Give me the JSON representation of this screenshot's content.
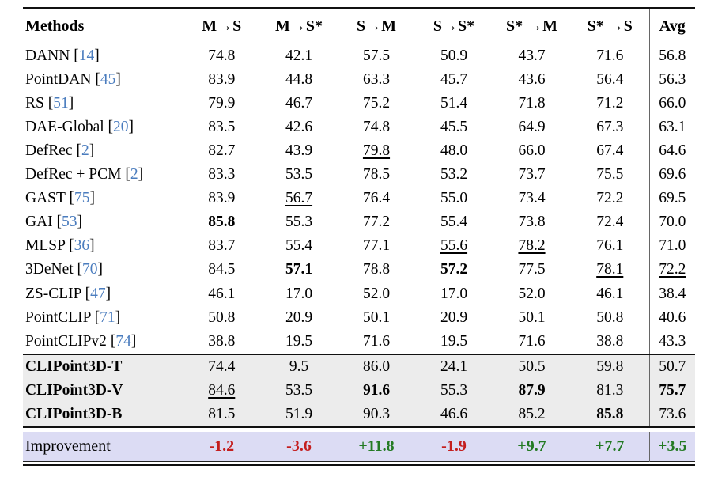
{
  "colors": {
    "cite_blue": "#4a7cbe",
    "section_bg": "#ececec",
    "improve_bg": "#dcdcf4",
    "neg_red": "#c41e1e",
    "pos_green": "#237a23",
    "rule_dark": "#111111"
  },
  "table": {
    "columns": [
      "Methods",
      "M→S",
      "M→S*",
      "S→M",
      "S→S*",
      "S* →M",
      "S* →S",
      "Avg"
    ],
    "sections": [
      {
        "id": "uda-methods",
        "rows": [
          {
            "method": "DANN",
            "cite": "14",
            "values": [
              {
                "v": "74.8"
              },
              {
                "v": "42.1"
              },
              {
                "v": "57.5"
              },
              {
                "v": "50.9"
              },
              {
                "v": "43.7"
              },
              {
                "v": "71.6"
              },
              {
                "v": "56.8"
              }
            ]
          },
          {
            "method": "PointDAN",
            "cite": "45",
            "values": [
              {
                "v": "83.9"
              },
              {
                "v": "44.8"
              },
              {
                "v": "63.3"
              },
              {
                "v": "45.7"
              },
              {
                "v": "43.6"
              },
              {
                "v": "56.4"
              },
              {
                "v": "56.3"
              }
            ]
          },
          {
            "method": "RS",
            "cite": "51",
            "values": [
              {
                "v": "79.9"
              },
              {
                "v": "46.7"
              },
              {
                "v": "75.2"
              },
              {
                "v": "51.4"
              },
              {
                "v": "71.8"
              },
              {
                "v": "71.2"
              },
              {
                "v": "66.0"
              }
            ]
          },
          {
            "method": "DAE-Global",
            "cite": "20",
            "values": [
              {
                "v": "83.5"
              },
              {
                "v": "42.6"
              },
              {
                "v": "74.8"
              },
              {
                "v": "45.5"
              },
              {
                "v": "64.9"
              },
              {
                "v": "67.3"
              },
              {
                "v": "63.1"
              }
            ]
          },
          {
            "method": "DefRec",
            "cite": "2",
            "values": [
              {
                "v": "82.7"
              },
              {
                "v": "43.9"
              },
              {
                "v": "79.8",
                "s": "u"
              },
              {
                "v": "48.0"
              },
              {
                "v": "66.0"
              },
              {
                "v": "67.4"
              },
              {
                "v": "64.6"
              }
            ]
          },
          {
            "method": "DefRec + PCM",
            "cite": "2",
            "values": [
              {
                "v": "83.3"
              },
              {
                "v": "53.5"
              },
              {
                "v": "78.5"
              },
              {
                "v": "53.2"
              },
              {
                "v": "73.7"
              },
              {
                "v": "75.5"
              },
              {
                "v": "69.6"
              }
            ]
          },
          {
            "method": "GAST",
            "cite": "75",
            "values": [
              {
                "v": "83.9"
              },
              {
                "v": "56.7",
                "s": "u"
              },
              {
                "v": "76.4"
              },
              {
                "v": "55.0"
              },
              {
                "v": "73.4"
              },
              {
                "v": "72.2"
              },
              {
                "v": "69.5"
              }
            ]
          },
          {
            "method": "GAI",
            "cite": "53",
            "values": [
              {
                "v": "85.8",
                "s": "b"
              },
              {
                "v": "55.3"
              },
              {
                "v": "77.2"
              },
              {
                "v": "55.4"
              },
              {
                "v": "73.8"
              },
              {
                "v": "72.4"
              },
              {
                "v": "70.0"
              }
            ]
          },
          {
            "method": "MLSP",
            "cite": "36",
            "values": [
              {
                "v": "83.7"
              },
              {
                "v": "55.4"
              },
              {
                "v": "77.1"
              },
              {
                "v": "55.6",
                "s": "u"
              },
              {
                "v": "78.2",
                "s": "u"
              },
              {
                "v": "76.1"
              },
              {
                "v": "71.0"
              }
            ]
          },
          {
            "method": "3DeNet",
            "cite": "70",
            "values": [
              {
                "v": "84.5"
              },
              {
                "v": "57.1",
                "s": "b"
              },
              {
                "v": "78.8"
              },
              {
                "v": "57.2",
                "s": "b"
              },
              {
                "v": "77.5"
              },
              {
                "v": "78.1",
                "s": "u"
              },
              {
                "v": "72.2",
                "s": "u"
              }
            ]
          }
        ]
      },
      {
        "id": "clip-zero-shot",
        "rows": [
          {
            "method": "ZS-CLIP",
            "cite": "47",
            "values": [
              {
                "v": "46.1"
              },
              {
                "v": "17.0"
              },
              {
                "v": "52.0"
              },
              {
                "v": "17.0"
              },
              {
                "v": "52.0"
              },
              {
                "v": "46.1"
              },
              {
                "v": "38.4"
              }
            ]
          },
          {
            "method": "PointCLIP",
            "cite": "71",
            "values": [
              {
                "v": "50.8"
              },
              {
                "v": "20.9"
              },
              {
                "v": "50.1"
              },
              {
                "v": "20.9"
              },
              {
                "v": "50.1"
              },
              {
                "v": "50.8"
              },
              {
                "v": "40.6"
              }
            ]
          },
          {
            "method": "PointCLIPv2",
            "cite": "74",
            "values": [
              {
                "v": "38.8"
              },
              {
                "v": "19.5"
              },
              {
                "v": "71.6"
              },
              {
                "v": "19.5"
              },
              {
                "v": "71.6"
              },
              {
                "v": "38.8"
              },
              {
                "v": "43.3"
              }
            ]
          }
        ]
      },
      {
        "id": "ours",
        "rows": [
          {
            "method": "CLIPoint3D-T",
            "cite": null,
            "values": [
              {
                "v": "74.4"
              },
              {
                "v": "9.5"
              },
              {
                "v": "86.0"
              },
              {
                "v": "24.1"
              },
              {
                "v": "50.5"
              },
              {
                "v": "59.8"
              },
              {
                "v": "50.7"
              }
            ]
          },
          {
            "method": "CLIPoint3D-V",
            "cite": null,
            "values": [
              {
                "v": "84.6",
                "s": "u"
              },
              {
                "v": "53.5"
              },
              {
                "v": "91.6",
                "s": "b"
              },
              {
                "v": "55.3"
              },
              {
                "v": "87.9",
                "s": "b"
              },
              {
                "v": "81.3"
              },
              {
                "v": "75.7",
                "s": "b"
              }
            ]
          },
          {
            "method": "CLIPoint3D-B",
            "cite": null,
            "values": [
              {
                "v": "81.5"
              },
              {
                "v": "51.9"
              },
              {
                "v": "90.3"
              },
              {
                "v": "46.6"
              },
              {
                "v": "85.2"
              },
              {
                "v": "85.8",
                "s": "b"
              },
              {
                "v": "73.6"
              }
            ]
          }
        ]
      }
    ],
    "improvement_row": {
      "label": "Improvement",
      "values": [
        {
          "v": "-1.2",
          "c": "neg"
        },
        {
          "v": "-3.6",
          "c": "neg"
        },
        {
          "v": "+11.8",
          "c": "pos"
        },
        {
          "v": "-1.9",
          "c": "neg"
        },
        {
          "v": "+9.7",
          "c": "pos"
        },
        {
          "v": "+7.7",
          "c": "pos"
        },
        {
          "v": "+3.5",
          "c": "pos"
        }
      ]
    }
  }
}
